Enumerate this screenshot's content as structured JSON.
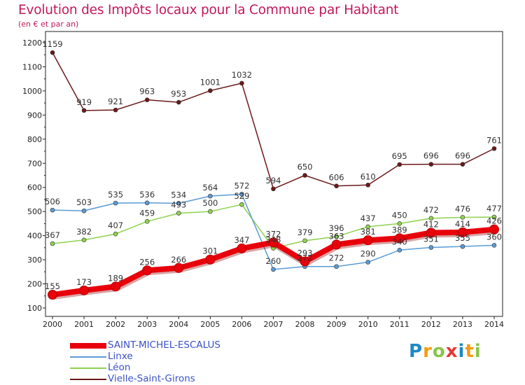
{
  "title": "Evolution des Impôts locaux pour la Commune par Habitant",
  "subtitle": "(en € et par an)",
  "logo": {
    "letters": [
      {
        "ch": "P",
        "color": "#1e88c7"
      },
      {
        "ch": "r",
        "color": "#f39c12"
      },
      {
        "ch": "o",
        "color": "#8bc34a"
      },
      {
        "ch": "x",
        "color": "#e53935"
      },
      {
        "ch": "i",
        "color": "#1e88c7"
      },
      {
        "ch": "t",
        "color": "#f39c12"
      },
      {
        "ch": "i",
        "color": "#8bc34a"
      }
    ]
  },
  "chart_data": {
    "type": "line",
    "title": "Evolution des Impôts locaux pour la Commune par Habitant",
    "subtitle": "(en € et par an)",
    "x": [
      "2000",
      "2001",
      "2002",
      "2003",
      "2004",
      "2005",
      "2006",
      "2007",
      "2008",
      "2009",
      "2010",
      "2011",
      "2012",
      "2013",
      "2014"
    ],
    "ylim": [
      100,
      1200
    ],
    "yticks": [
      100,
      200,
      300,
      400,
      500,
      600,
      700,
      800,
      900,
      1000,
      1100,
      1200
    ],
    "grid": false,
    "legend_position": "bottom-left",
    "series": [
      {
        "name": "SAINT-MICHEL-ESCALUS",
        "color": "#e8000b",
        "label_color": "#333333",
        "values": [
          155,
          173,
          189,
          256,
          266,
          301,
          347,
          372,
          293,
          363,
          381,
          389,
          412,
          414,
          426
        ],
        "labels": [
          "155",
          "173",
          "189",
          "256",
          "266",
          "301",
          "347",
          "372",
          "293",
          "363",
          "381",
          "389",
          "412",
          "414",
          "426"
        ]
      },
      {
        "name": "Linxe",
        "color": "#5b9bd5",
        "label_color": "#333333",
        "values": [
          506,
          503,
          535,
          536,
          534,
          564,
          572,
          260,
          272,
          272,
          290,
          340,
          351,
          355,
          360
        ],
        "labels": [
          "506",
          "503",
          "535",
          "536",
          "534",
          "564",
          "572",
          "260",
          "272",
          "272",
          "290",
          "340",
          "351",
          "355",
          "360"
        ]
      },
      {
        "name": "Léon",
        "color": "#8fd14f",
        "label_color": "#333333",
        "values": [
          367,
          382,
          407,
          459,
          493,
          500,
          529,
          348,
          379,
          396,
          437,
          450,
          472,
          476,
          477
        ],
        "labels": [
          "367",
          "382",
          "407",
          "459",
          "493",
          "500",
          "529",
          "348",
          "379",
          "396",
          "437",
          "450",
          "472",
          "476",
          "477"
        ]
      },
      {
        "name": "Vielle-Saint-Girons",
        "color": "#6b1a1a",
        "label_color": "#333333",
        "values": [
          1159,
          919,
          921,
          963,
          953,
          1001,
          1032,
          594,
          650,
          606,
          610,
          695,
          696,
          696,
          761
        ],
        "labels": [
          "1159",
          "919",
          "921",
          "963",
          "953",
          "1001",
          "1032",
          "594",
          "650",
          "606",
          "610",
          "695",
          "696",
          "696",
          "761"
        ]
      }
    ]
  }
}
